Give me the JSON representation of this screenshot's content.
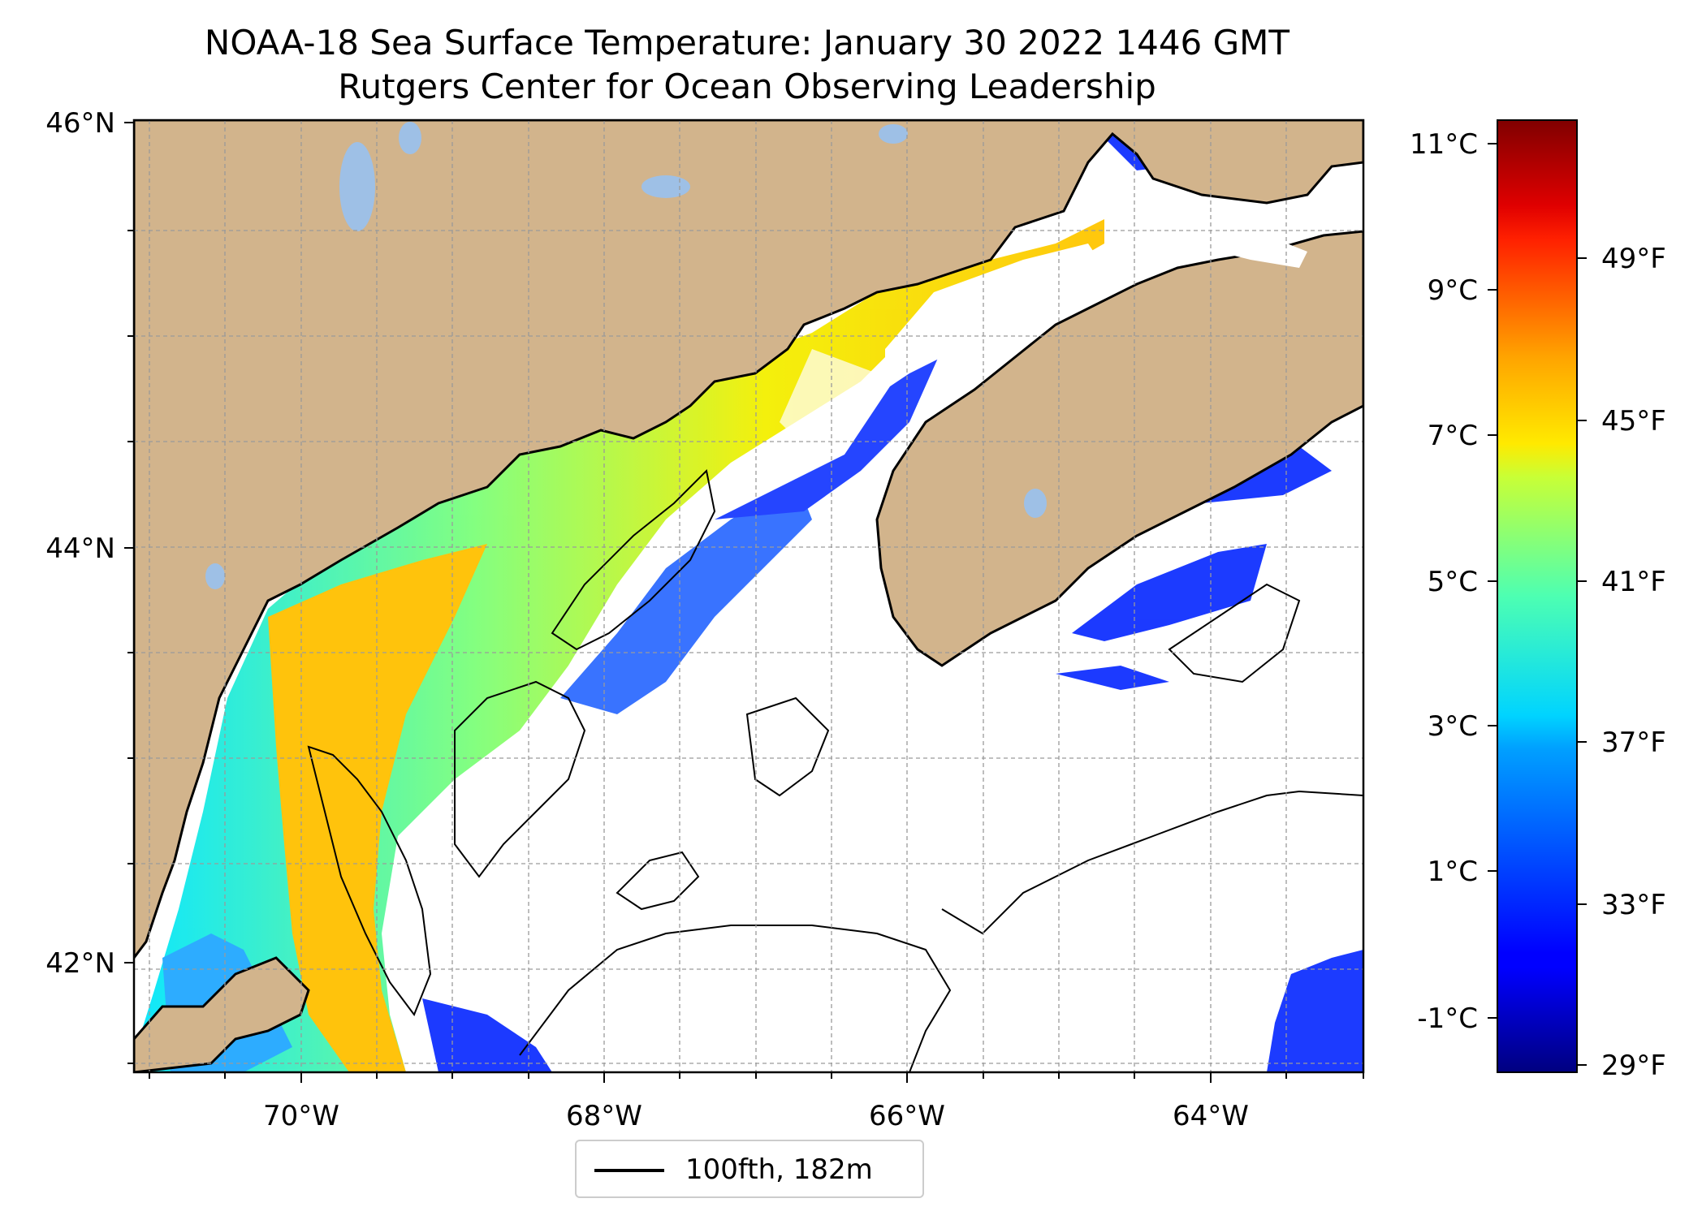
{
  "title": "NOAA-18 Sea Surface Temperature: January 30 2022 1446 GMT",
  "subtitle": "Rutgers Center for Ocean Observing Leadership",
  "map": {
    "lat_ticks": [
      "46°N",
      "44°N",
      "42°N"
    ],
    "lon_ticks": [
      "70°W",
      "68°W",
      "66°W",
      "64°W"
    ],
    "extent": {
      "lon": [
        -71.1,
        -63.0
      ],
      "lat": [
        41.55,
        46.0
      ]
    },
    "land_color": "#d2b48c",
    "lake_color": "#9ec0e6",
    "coastline_color": "#000000",
    "gridlines": true
  },
  "legend": {
    "label": "100fth, 182m",
    "line_color": "#000000"
  },
  "colorbar": {
    "colormap": "jet",
    "celsius_ticks": [
      "11°C",
      "9°C",
      "7°C",
      "5°C",
      "3°C",
      "1°C",
      "-1°C"
    ],
    "fahrenheit_ticks": [
      "49°F",
      "45°F",
      "41°F",
      "37°F",
      "33°F",
      "29°F"
    ],
    "range_c": [
      -1.7,
      11.3
    ]
  }
}
